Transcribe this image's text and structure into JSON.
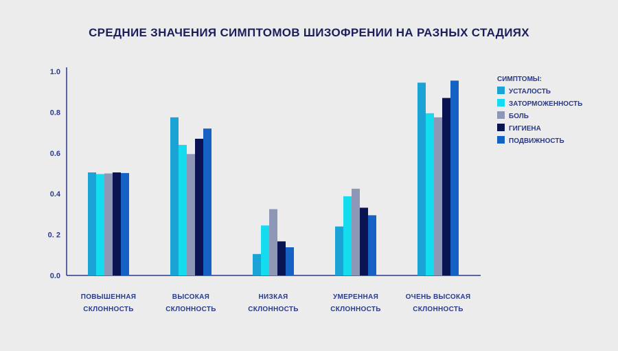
{
  "chart_data": {
    "type": "bar",
    "title": "СРЕДНИЕ ЗНАЧЕНИЯ СИМПТОМОВ ШИЗОФРЕНИИ НА РАЗНЫХ СТАДИЯХ",
    "xlabel": "",
    "ylabel": "",
    "ylim": [
      0,
      1.0
    ],
    "y_ticks": [
      {
        "value": 0.0,
        "label": "0.0"
      },
      {
        "value": 0.2,
        "label": "0. 2"
      },
      {
        "value": 0.4,
        "label": "0.4"
      },
      {
        "value": 0.6,
        "label": "0.6"
      },
      {
        "value": 0.8,
        "label": "0.8"
      },
      {
        "value": 1.0,
        "label": "1.0"
      }
    ],
    "categories": [
      [
        "ПОВЫШЕННАЯ",
        "СКЛОННОСТЬ"
      ],
      [
        "ВЫСОКАЯ",
        "СКЛОННОСТЬ"
      ],
      [
        "НИЗКАЯ",
        "СКЛОННОСТЬ"
      ],
      [
        "УМЕРЕННАЯ",
        "СКЛОННОСТЬ"
      ],
      [
        "ОЧЕНЬ ВЫСОКАЯ",
        "СКЛОННОСТЬ"
      ]
    ],
    "legend_title": "СИМПТОМЫ:",
    "legend_position": "right",
    "series": [
      {
        "name": "УСТАЛОСТЬ",
        "color": "#1aa3d4",
        "values": [
          0.505,
          0.775,
          0.105,
          0.24,
          0.945
        ]
      },
      {
        "name": "ЗАТОРМОЖЕННОСТЬ",
        "color": "#14dcee",
        "values": [
          0.497,
          0.64,
          0.245,
          0.388,
          0.795
        ]
      },
      {
        "name": "БОЛЬ",
        "color": "#8f97b7",
        "values": [
          0.5,
          0.595,
          0.325,
          0.425,
          0.775
        ]
      },
      {
        "name": "ГИГИЕНА",
        "color": "#0b1452",
        "values": [
          0.505,
          0.67,
          0.167,
          0.332,
          0.87
        ]
      },
      {
        "name": "ПОДВИЖНОСТЬ",
        "color": "#1562c4",
        "values": [
          0.502,
          0.72,
          0.138,
          0.295,
          0.955
        ]
      }
    ]
  }
}
